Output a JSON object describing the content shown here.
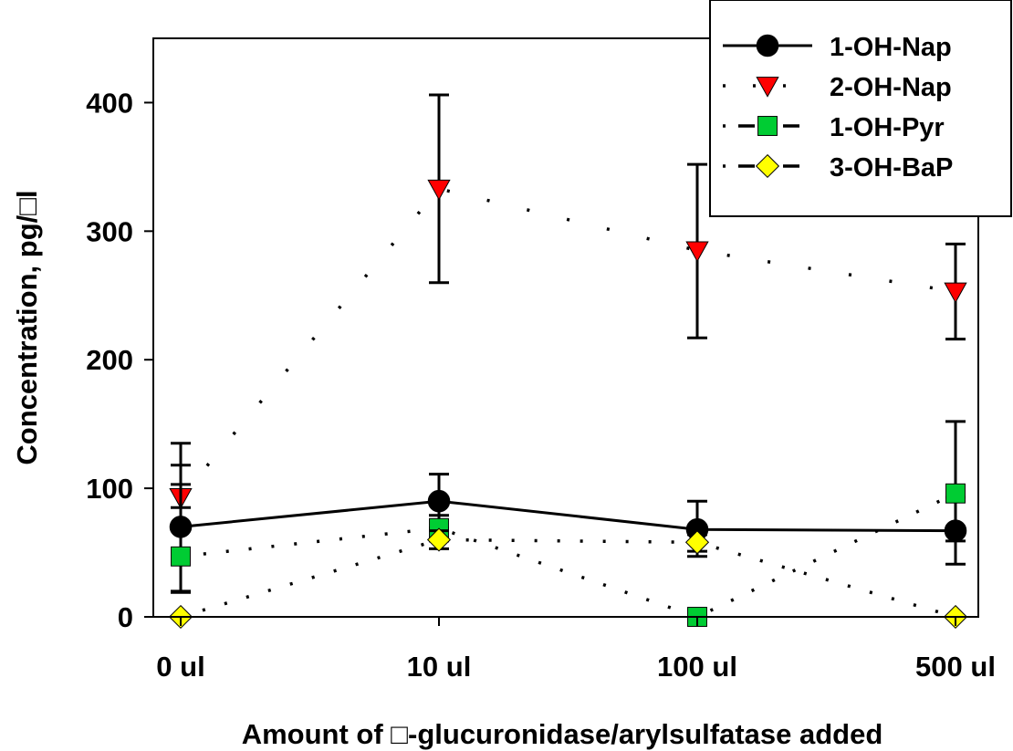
{
  "chart_data": {
    "type": "line",
    "categories": [
      "0 ul",
      "10 ul",
      "100 ul",
      "500 ul"
    ],
    "xlabel": "Amount of □-glucuronidase/arylsulfatase added",
    "ylabel": "Concentration, pg/□l",
    "ylim": [
      0,
      450
    ],
    "yticks": [
      0,
      100,
      200,
      300,
      400
    ],
    "grid": false,
    "legend_position": "top-right",
    "series": [
      {
        "name": "1-OH-Nap",
        "values": [
          70,
          90,
          68,
          67
        ],
        "error_low": [
          20,
          69,
          47,
          41
        ],
        "error_high": [
          118,
          111,
          90,
          93
        ],
        "marker": "circle",
        "line_style": "solid",
        "color": "#000000"
      },
      {
        "name": "2-OH-Nap",
        "values": [
          93,
          333,
          285,
          253
        ],
        "error_low": [
          85,
          260,
          217,
          216
        ],
        "error_high": [
          103,
          406,
          352,
          290
        ],
        "marker": "triangle-down",
        "line_style": "dotted",
        "color": "#ff0000"
      },
      {
        "name": "1-OH-Pyr",
        "values": [
          47,
          69,
          0,
          96
        ],
        "error_low": [
          19,
          59,
          0,
          59
        ],
        "error_high": [
          135,
          79,
          0,
          152
        ],
        "marker": "square",
        "line_style": "dash-dot",
        "color": "#00cc33"
      },
      {
        "name": "3-OH-BaP",
        "values": [
          0,
          60,
          58,
          0
        ],
        "error_low": [
          0,
          53,
          51,
          0
        ],
        "error_high": [
          0,
          67,
          64,
          0
        ],
        "marker": "diamond",
        "line_style": "dash-dot",
        "color": "#ffff00"
      }
    ]
  }
}
